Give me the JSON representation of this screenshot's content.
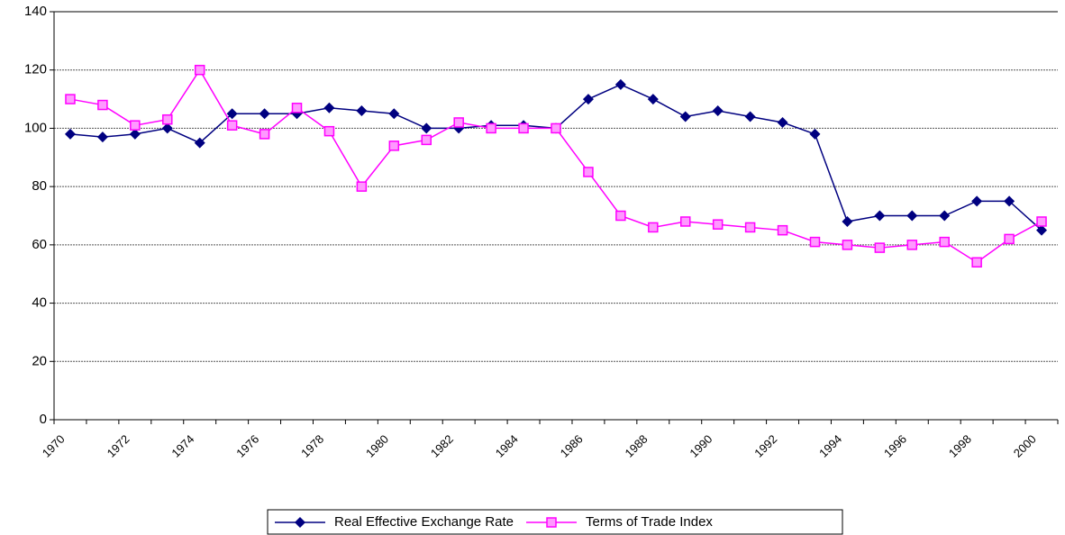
{
  "chart_data": {
    "type": "line",
    "categories": [
      "1970",
      null,
      "1972",
      null,
      "1974",
      null,
      "1976",
      null,
      "1978",
      null,
      "1980",
      null,
      "1982",
      null,
      "1984",
      null,
      "1986",
      null,
      "1988",
      null,
      "1990",
      null,
      "1992",
      null,
      "1994",
      null,
      "1996",
      null,
      "1998",
      null,
      "2000"
    ],
    "series": [
      {
        "name": "Real Effective Exchange Rate",
        "color": "#000080",
        "marker": "diamond",
        "values": [
          98,
          97,
          98,
          100,
          95,
          105,
          105,
          105,
          107,
          106,
          105,
          100,
          100,
          101,
          101,
          100,
          110,
          115,
          110,
          104,
          106,
          104,
          102,
          98,
          68,
          70,
          70,
          70,
          75,
          75,
          65
        ]
      },
      {
        "name": "Terms of Trade Index",
        "color": "#ff00ff",
        "marker": "square",
        "values": [
          110,
          108,
          101,
          103,
          120,
          101,
          98,
          107,
          99,
          80,
          94,
          96,
          102,
          100,
          100,
          100,
          85,
          70,
          66,
          68,
          67,
          66,
          65,
          61,
          60,
          59,
          60,
          61,
          54,
          62,
          68
        ]
      }
    ],
    "ylim": [
      0,
      140
    ],
    "yticks": [
      0,
      20,
      40,
      60,
      80,
      100,
      120,
      140
    ],
    "grid": true,
    "legend": "bottom"
  }
}
